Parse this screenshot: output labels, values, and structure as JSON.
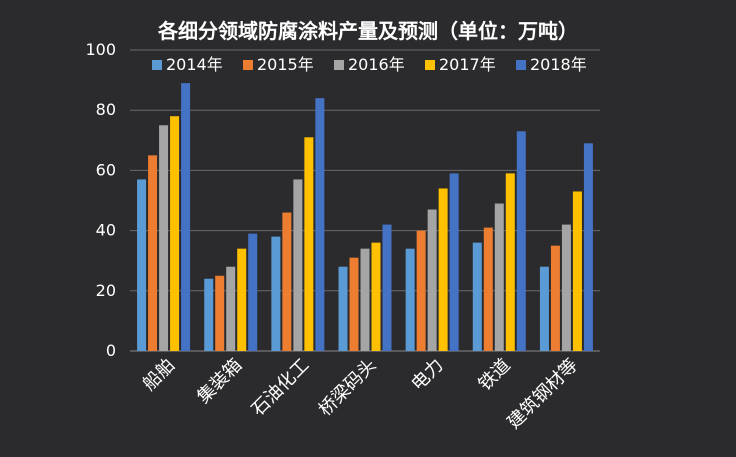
{
  "chart_data": {
    "type": "bar",
    "title": "各细分领域防腐涂料产量及预测（单位：万吨）",
    "categories": [
      "船舶",
      "集装箱",
      "石油化工",
      "桥梁码头",
      "电力",
      "铁道",
      "建筑钢材等"
    ],
    "series": [
      {
        "name": "2014年",
        "color": "#5b9bd5",
        "values": [
          57,
          24,
          38,
          28,
          34,
          36,
          28
        ]
      },
      {
        "name": "2015年",
        "color": "#ed7d31",
        "values": [
          65,
          25,
          46,
          31,
          40,
          41,
          35
        ]
      },
      {
        "name": "2016年",
        "color": "#a5a5a5",
        "values": [
          75,
          28,
          57,
          34,
          47,
          49,
          42
        ]
      },
      {
        "name": "2017年",
        "color": "#ffc000",
        "values": [
          78,
          34,
          71,
          36,
          54,
          59,
          53
        ]
      },
      {
        "name": "2018年",
        "color": "#4472c4",
        "values": [
          89,
          39,
          84,
          42,
          59,
          73,
          69
        ]
      }
    ],
    "ylim": [
      0,
      100
    ],
    "yticks": [
      0,
      20,
      40,
      60,
      80,
      100
    ],
    "grid": true,
    "legend": "top"
  }
}
